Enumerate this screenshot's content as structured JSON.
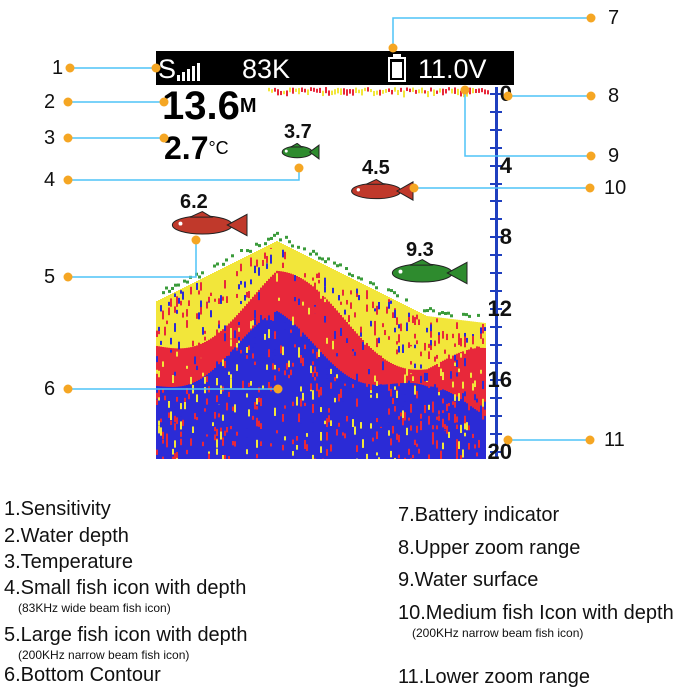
{
  "display": {
    "sensitivity_letter": "S",
    "frequency": "83K",
    "voltage": "11.0V",
    "water_depth": "13.6",
    "water_depth_unit": "M",
    "temperature": "2.7",
    "temperature_unit": "°C"
  },
  "fish": [
    {
      "depth": "3.7",
      "size": "small",
      "color": "#2e8b2e"
    },
    {
      "depth": "4.5",
      "size": "medium",
      "color": "#c0392b"
    },
    {
      "depth": "6.2",
      "size": "large",
      "color": "#c0392b"
    },
    {
      "depth": "9.3",
      "size": "large",
      "color": "#2e8b2e"
    }
  ],
  "depth_scale": [
    "0",
    "4",
    "8",
    "12",
    "16",
    "20"
  ],
  "callout_numbers": [
    "1",
    "2",
    "3",
    "4",
    "5",
    "6",
    "7",
    "8",
    "9",
    "10",
    "11"
  ],
  "legend_left": [
    {
      "text": "1.Sensitivity"
    },
    {
      "text": "2.Water depth"
    },
    {
      "text": "3.Temperature"
    },
    {
      "text": "4.Small fish icon with depth",
      "note": "(83KHz wide beam fish icon)"
    },
    {
      "text": "5.Large fish icon with depth",
      "note": "(200KHz narrow beam fish icon)"
    },
    {
      "text": "6.Bottom Contour"
    }
  ],
  "legend_right": [
    {
      "text": "7.Battery indicator"
    },
    {
      "text": "8.Upper zoom range"
    },
    {
      "text": "9.Water surface"
    },
    {
      "text": "10.Medium fish Icon with depth",
      "note": "(200KHz narrow beam fish icon)"
    },
    {
      "text": "11.Lower zoom range"
    }
  ],
  "colors": {
    "callout_line": "#4fc3f7",
    "callout_dot": "#f5a623",
    "scale_blue": "#1f3fbf",
    "sonar_blue": "#2b2bd6",
    "sonar_red": "#e8283a",
    "sonar_yellow": "#f2e63a"
  }
}
